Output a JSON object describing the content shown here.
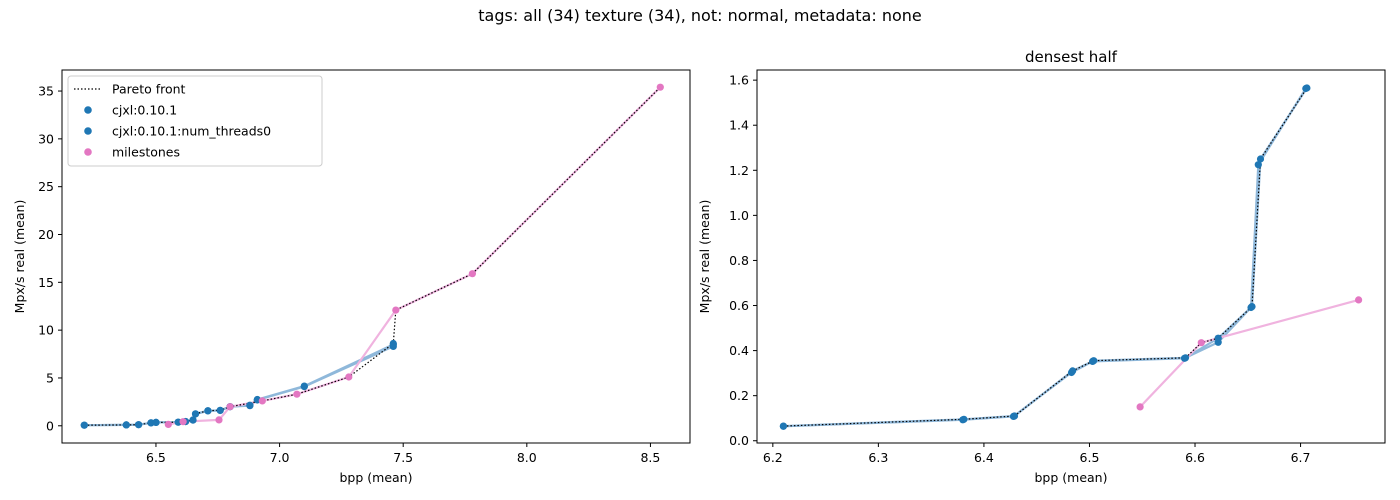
{
  "figure": {
    "suptitle": "tags: all (34) texture (34), not: normal, metadata: none"
  },
  "colors": {
    "series_blue": "#1f77b4",
    "series_pink": "#e377c2",
    "line_blue": "#8fb8da",
    "line_pink": "#f0b3df",
    "pareto": "#000000"
  },
  "chart_data": [
    {
      "type": "scatter",
      "title": "",
      "xlabel": "bpp (mean)",
      "ylabel": "Mpx/s real (mean)",
      "xlim": [
        6.12,
        8.66
      ],
      "ylim": [
        -1.8,
        37.2
      ],
      "xticks": [
        6.5,
        7.0,
        7.5,
        8.0,
        8.5
      ],
      "xtick_labels": [
        "6.5",
        "7.0",
        "7.5",
        "8.0",
        "8.5"
      ],
      "yticks": [
        0,
        5,
        10,
        15,
        20,
        25,
        30,
        35
      ],
      "ytick_labels": [
        "0",
        "5",
        "10",
        "15",
        "20",
        "25",
        "30",
        "35"
      ],
      "grid": false,
      "legend": {
        "placement": "top-left",
        "entries": [
          {
            "label": "Pareto front",
            "kind": "line"
          },
          {
            "label": "cjxl:0.10.1",
            "kind": "marker",
            "color": "#1f77b4"
          },
          {
            "label": "cjxl:0.10.1:num_threads0",
            "kind": "marker",
            "color": "#1f77b4"
          },
          {
            "label": "milestones",
            "kind": "marker",
            "color": "#e377c2"
          }
        ]
      },
      "series": [
        {
          "name": "cjxl:0.10.1",
          "color": "#1f77b4",
          "x": [
            6.21,
            6.38,
            6.43,
            6.48,
            6.5,
            6.59,
            6.62,
            6.65,
            6.66,
            6.71,
            6.76,
            6.8,
            6.88,
            6.91,
            7.1,
            7.46,
            7.46
          ],
          "y": [
            0.06,
            0.09,
            0.11,
            0.3,
            0.35,
            0.37,
            0.44,
            0.59,
            1.23,
            1.56,
            1.6,
            2.0,
            2.1,
            2.7,
            4.1,
            8.3,
            8.6
          ]
        },
        {
          "name": "cjxl:0.10.1:num_threads0",
          "color": "#1f77b4",
          "x": [
            6.21,
            6.38,
            6.43,
            6.48,
            6.5,
            6.59,
            6.62,
            6.65,
            6.66,
            6.71,
            6.76,
            6.8,
            6.88,
            6.91,
            7.1,
            7.46
          ],
          "y": [
            0.06,
            0.09,
            0.11,
            0.31,
            0.35,
            0.37,
            0.45,
            0.6,
            1.25,
            1.58,
            1.62,
            2.0,
            2.15,
            2.75,
            4.15,
            8.5
          ]
        },
        {
          "name": "milestones",
          "color": "#e377c2",
          "x": [
            6.55,
            6.61,
            6.755,
            6.8,
            6.93,
            7.07,
            7.28,
            7.47,
            7.78,
            8.54
          ],
          "y": [
            0.15,
            0.43,
            0.62,
            2.0,
            2.6,
            3.3,
            5.1,
            12.1,
            15.9,
            35.4
          ]
        }
      ],
      "pareto_front": {
        "x": [
          6.21,
          6.38,
          6.43,
          6.48,
          6.5,
          6.59,
          6.62,
          6.65,
          6.66,
          6.71,
          6.76,
          6.8,
          6.93,
          7.07,
          7.28,
          7.46,
          7.47,
          7.78,
          8.54
        ],
        "y": [
          0.06,
          0.09,
          0.11,
          0.31,
          0.35,
          0.37,
          0.45,
          0.6,
          1.25,
          1.58,
          1.62,
          2.0,
          2.6,
          3.3,
          5.1,
          8.6,
          12.1,
          15.9,
          35.4
        ]
      }
    },
    {
      "type": "scatter",
      "title": "densest half",
      "xlabel": "bpp (mean)",
      "ylabel": "Mpx/s real (mean)",
      "xlim": [
        6.185,
        6.78
      ],
      "ylim": [
        -0.01,
        1.645
      ],
      "xticks": [
        6.2,
        6.3,
        6.4,
        6.5,
        6.6,
        6.7
      ],
      "xtick_labels": [
        "6.2",
        "6.3",
        "6.4",
        "6.5",
        "6.6",
        "6.7"
      ],
      "yticks": [
        0.0,
        0.2,
        0.4,
        0.6,
        0.8,
        1.0,
        1.2,
        1.4,
        1.6
      ],
      "ytick_labels": [
        "0.0",
        "0.2",
        "0.4",
        "0.6",
        "0.8",
        "1.0",
        "1.2",
        "1.4",
        "1.6"
      ],
      "grid": false,
      "series": [
        {
          "name": "cjxl:0.10.1",
          "color": "#1f77b4",
          "x": [
            6.21,
            6.38,
            6.428,
            6.483,
            6.503,
            6.59,
            6.622,
            6.653,
            6.66,
            6.705
          ],
          "y": [
            0.064,
            0.093,
            0.108,
            0.303,
            0.352,
            0.366,
            0.437,
            0.591,
            1.225,
            1.563
          ]
        },
        {
          "name": "cjxl:0.10.1:num_threads0",
          "color": "#1f77b4",
          "x": [
            6.21,
            6.381,
            6.429,
            6.484,
            6.504,
            6.591,
            6.622,
            6.654,
            6.662,
            6.706
          ],
          "y": [
            0.065,
            0.095,
            0.11,
            0.31,
            0.355,
            0.368,
            0.455,
            0.595,
            1.25,
            1.565
          ]
        },
        {
          "name": "milestones",
          "color": "#e377c2",
          "x": [
            6.548,
            6.606,
            6.755
          ],
          "y": [
            0.15,
            0.435,
            0.625
          ]
        }
      ],
      "pareto_front": {
        "x": [
          6.21,
          6.381,
          6.429,
          6.484,
          6.504,
          6.591,
          6.606,
          6.622,
          6.654,
          6.662,
          6.706
        ],
        "y": [
          0.065,
          0.095,
          0.11,
          0.31,
          0.355,
          0.368,
          0.435,
          0.455,
          0.595,
          1.25,
          1.565
        ]
      }
    }
  ]
}
